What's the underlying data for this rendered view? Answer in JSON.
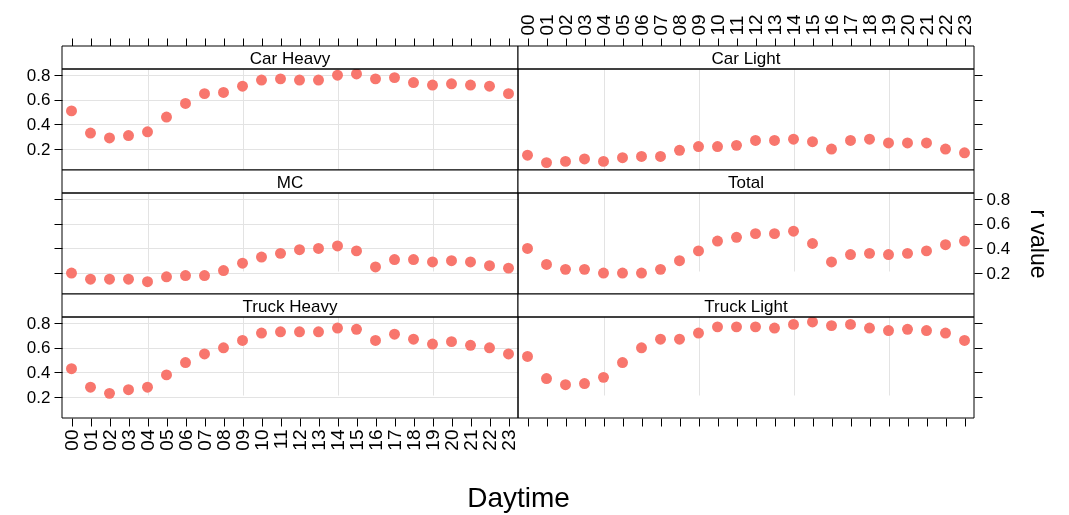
{
  "chart_data": [
    {
      "type": "scatter",
      "title": "Car Heavy",
      "categories": [
        "00",
        "01",
        "02",
        "03",
        "04",
        "05",
        "06",
        "07",
        "08",
        "09",
        "10",
        "11",
        "12",
        "13",
        "14",
        "15",
        "16",
        "17",
        "18",
        "19",
        "20",
        "21",
        "22",
        "23"
      ],
      "values": [
        0.51,
        0.33,
        0.29,
        0.31,
        0.34,
        0.46,
        0.57,
        0.65,
        0.66,
        0.71,
        0.76,
        0.77,
        0.76,
        0.76,
        0.8,
        0.81,
        0.77,
        0.78,
        0.74,
        0.72,
        0.73,
        0.72,
        0.71,
        0.65
      ],
      "color": "#f8766d",
      "marker": "circle",
      "ylim": [
        0.03,
        0.85
      ],
      "yticks": [
        0.2,
        0.4,
        0.6,
        0.8
      ],
      "grid": true,
      "tick_labels": "y"
    },
    {
      "type": "scatter",
      "title": "Car Light",
      "categories": [
        "00",
        "01",
        "02",
        "03",
        "04",
        "05",
        "06",
        "07",
        "08",
        "09",
        "10",
        "11",
        "12",
        "13",
        "14",
        "15",
        "16",
        "17",
        "18",
        "19",
        "20",
        "21",
        "22",
        "23"
      ],
      "values": [
        0.15,
        0.09,
        0.1,
        0.12,
        0.1,
        0.13,
        0.14,
        0.14,
        0.19,
        0.22,
        0.22,
        0.23,
        0.27,
        0.27,
        0.28,
        0.26,
        0.2,
        0.27,
        0.28,
        0.25,
        0.25,
        0.25,
        0.2,
        0.17
      ],
      "color": "#f8766d",
      "marker": "circle",
      "ylim": [
        0.03,
        0.85
      ],
      "yticks": [
        0.2,
        0.4,
        0.6,
        0.8
      ],
      "grid": true,
      "tick_labels": "x"
    },
    {
      "type": "scatter",
      "title": "MC",
      "categories": [
        "00",
        "01",
        "02",
        "03",
        "04",
        "05",
        "06",
        "07",
        "08",
        "09",
        "10",
        "11",
        "12",
        "13",
        "14",
        "15",
        "16",
        "17",
        "18",
        "19",
        "20",
        "21",
        "22",
        "23"
      ],
      "values": [
        0.2,
        0.15,
        0.15,
        0.15,
        0.13,
        0.17,
        0.18,
        0.18,
        0.22,
        0.28,
        0.33,
        0.36,
        0.39,
        0.4,
        0.42,
        0.38,
        0.25,
        0.31,
        0.31,
        0.29,
        0.3,
        0.29,
        0.26,
        0.24
      ],
      "color": "#f8766d",
      "marker": "circle",
      "ylim": [
        0.03,
        0.85
      ],
      "yticks": [
        0.2,
        0.4,
        0.6,
        0.8
      ],
      "grid": true,
      "tick_labels": false
    },
    {
      "type": "scatter",
      "title": "Total",
      "ylabel": "r value",
      "categories": [
        "00",
        "01",
        "02",
        "03",
        "04",
        "05",
        "06",
        "07",
        "08",
        "09",
        "10",
        "11",
        "12",
        "13",
        "14",
        "15",
        "16",
        "17",
        "18",
        "19",
        "20",
        "21",
        "22",
        "23"
      ],
      "values": [
        0.4,
        0.27,
        0.23,
        0.23,
        0.2,
        0.2,
        0.2,
        0.23,
        0.3,
        0.38,
        0.46,
        0.49,
        0.52,
        0.52,
        0.54,
        0.44,
        0.29,
        0.35,
        0.36,
        0.35,
        0.36,
        0.38,
        0.43,
        0.46
      ],
      "color": "#f8766d",
      "marker": "circle",
      "ylim": [
        0.03,
        0.85
      ],
      "yticks": [
        0.2,
        0.4,
        0.6,
        0.8
      ],
      "grid": true,
      "tick_labels": "y"
    },
    {
      "type": "scatter",
      "title": "Truck Heavy",
      "xlabel": "Daytime",
      "categories": [
        "00",
        "01",
        "02",
        "03",
        "04",
        "05",
        "06",
        "07",
        "08",
        "09",
        "10",
        "11",
        "12",
        "13",
        "14",
        "15",
        "16",
        "17",
        "18",
        "19",
        "20",
        "21",
        "22",
        "23"
      ],
      "values": [
        0.43,
        0.28,
        0.23,
        0.26,
        0.28,
        0.38,
        0.48,
        0.55,
        0.6,
        0.66,
        0.72,
        0.73,
        0.73,
        0.73,
        0.76,
        0.75,
        0.66,
        0.71,
        0.67,
        0.63,
        0.65,
        0.62,
        0.6,
        0.55
      ],
      "color": "#f8766d",
      "marker": "circle",
      "ylim": [
        0.03,
        0.85
      ],
      "yticks": [
        0.2,
        0.4,
        0.6,
        0.8
      ],
      "grid": true
    },
    {
      "type": "scatter",
      "title": "Truck Light",
      "categories": [
        "00",
        "01",
        "02",
        "03",
        "04",
        "05",
        "06",
        "07",
        "08",
        "09",
        "10",
        "11",
        "12",
        "13",
        "14",
        "15",
        "16",
        "17",
        "18",
        "19",
        "20",
        "21",
        "22",
        "23"
      ],
      "values": [
        0.53,
        0.35,
        0.3,
        0.31,
        0.36,
        0.48,
        0.6,
        0.67,
        0.67,
        0.72,
        0.77,
        0.77,
        0.77,
        0.76,
        0.79,
        0.81,
        0.78,
        0.79,
        0.76,
        0.74,
        0.75,
        0.74,
        0.72,
        0.66
      ],
      "color": "#f8766d",
      "marker": "circle",
      "ylim": [
        0.03,
        0.85
      ],
      "yticks": [
        0.2,
        0.4,
        0.6,
        0.8
      ],
      "grid": true,
      "tick_labels": false
    }
  ]
}
